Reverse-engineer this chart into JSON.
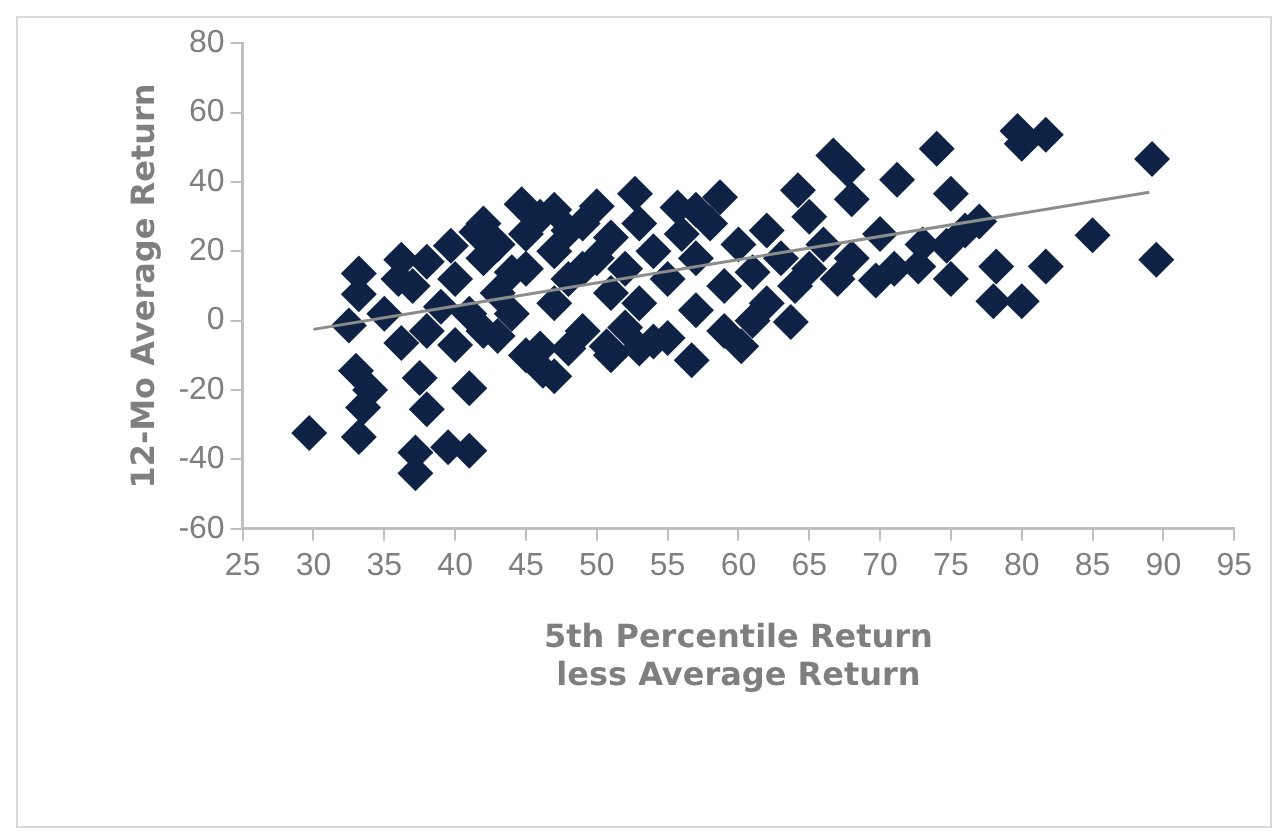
{
  "chart_data": {
    "type": "scatter",
    "xlabel": "5th Percentile Return less Average Return",
    "ylabel": "12-Mo Average Return",
    "xlim": [
      25,
      95
    ],
    "xticks": [
      25,
      30,
      35,
      40,
      45,
      50,
      55,
      60,
      65,
      70,
      75,
      80,
      85,
      90,
      95
    ],
    "ylim": [
      -60,
      80
    ],
    "yticks": [
      -60,
      -40,
      -20,
      0,
      20,
      40,
      60,
      80
    ],
    "grid": false,
    "legend": false,
    "marker": "diamond",
    "series": [
      {
        "color": "#0d2245",
        "x": [
          29.7,
          33.2,
          33,
          34,
          33.5,
          37.2,
          37.2,
          39.5,
          41,
          38,
          37.5,
          41,
          36.2,
          32.5,
          33.2,
          33.2,
          36.2,
          37,
          39.7,
          41.5,
          44.7,
          43,
          46.2,
          38,
          39,
          40,
          42,
          43,
          44,
          45,
          45,
          46,
          47,
          47,
          48,
          48,
          49,
          49,
          50,
          50,
          51,
          51,
          50.7,
          52,
          52,
          52.7,
          53,
          53,
          54,
          54,
          55,
          55.7,
          56,
          56.7,
          57,
          57,
          58,
          58.7,
          59,
          60.2,
          60,
          61,
          61,
          62,
          62,
          63,
          63.7,
          64.2,
          64,
          65,
          65,
          66,
          66.7,
          67.7,
          67,
          68,
          68,
          69.7,
          70,
          71.2,
          71,
          72.7,
          73,
          74,
          74.7,
          75,
          75,
          76,
          77,
          78,
          78.2,
          79.7,
          80,
          80,
          81.7,
          81.7,
          85,
          89.2,
          89.5,
          35,
          36,
          38,
          40,
          41,
          42,
          43,
          44,
          46,
          47,
          48,
          49,
          51,
          53,
          55,
          57,
          59,
          45,
          47,
          42
        ],
        "values": [
          -32.4,
          -33.5,
          -14.4,
          -20,
          -25,
          -44,
          -38,
          -36.5,
          -37.5,
          -25.5,
          -16.5,
          -19.5,
          -6.4,
          -1.4,
          13.6,
          7.6,
          17.6,
          10,
          21.6,
          25.6,
          33.6,
          -4.4,
          -14.4,
          -3,
          4,
          12,
          18,
          8,
          2,
          15,
          25,
          30,
          20,
          5,
          -8,
          12,
          28,
          -3,
          18,
          33,
          8,
          24,
          -7.4,
          -2,
          15,
          36.6,
          28,
          5,
          -6,
          20,
          12,
          32.6,
          25,
          -11.4,
          3,
          18,
          28,
          35.6,
          10,
          -7.4,
          22,
          0,
          14,
          26,
          5,
          18,
          -0.4,
          37.6,
          10,
          30,
          15,
          22,
          47.6,
          43.6,
          12,
          35,
          18,
          11.6,
          25,
          40.6,
          15,
          15.6,
          22,
          49.6,
          21.6,
          36.6,
          12,
          26,
          28.6,
          5.6,
          15.6,
          54.7,
          5.6,
          51,
          53.6,
          15.6,
          24.6,
          46.6,
          17.6,
          2,
          12,
          17,
          -7,
          2,
          28,
          22,
          14,
          -8,
          32,
          26,
          15,
          -10,
          -8,
          -5,
          32,
          -3,
          -10,
          -16,
          -3
        ]
      },
      {
        "type": "line",
        "color": "#8c8c8c",
        "marker": "none",
        "x": [
          30,
          89
        ],
        "values": [
          -2.5,
          37
        ]
      }
    ]
  }
}
